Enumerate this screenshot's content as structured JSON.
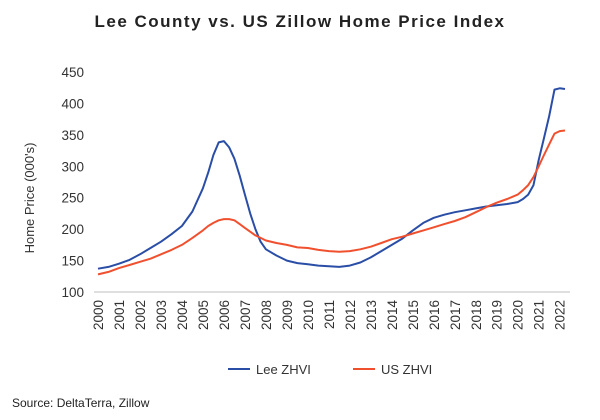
{
  "chart_data": {
    "type": "line",
    "title": "Lee County vs. US Zillow Home Price Index",
    "ylabel": "Home Price  (000's)",
    "xlabel": "",
    "x": [
      2000,
      2000.5,
      2001,
      2001.5,
      2002,
      2002.5,
      2003,
      2003.5,
      2004,
      2004.5,
      2005,
      2005.25,
      2005.5,
      2005.75,
      2006,
      2006.25,
      2006.5,
      2006.75,
      2007,
      2007.25,
      2007.5,
      2007.75,
      2008,
      2008.5,
      2009,
      2009.5,
      2010,
      2010.5,
      2011,
      2011.5,
      2012,
      2012.5,
      2013,
      2013.5,
      2014,
      2014.5,
      2015,
      2015.5,
      2016,
      2016.5,
      2017,
      2017.5,
      2018,
      2018.5,
      2019,
      2019.5,
      2020,
      2020.25,
      2020.5,
      2020.75,
      2021,
      2021.25,
      2021.5,
      2021.75,
      2022,
      2022.25
    ],
    "xlim": [
      2000,
      2022.3
    ],
    "xticks": [
      "2000",
      "2001",
      "2002",
      "2003",
      "2004",
      "2005",
      "2006",
      "2007",
      "2008",
      "2009",
      "2010",
      "2011",
      "2012",
      "2013",
      "2014",
      "2015",
      "2016",
      "2017",
      "2018",
      "2019",
      "2020",
      "2021",
      "2022"
    ],
    "yticks": [
      "100",
      "150",
      "200",
      "250",
      "300",
      "350",
      "400",
      "450"
    ],
    "ylim": [
      100,
      450
    ],
    "grid": false,
    "legend_position": "bottom",
    "series": [
      {
        "name": "Lee ZHVI",
        "color": "#2a4ea6",
        "values": [
          137,
          140,
          145,
          151,
          160,
          170,
          180,
          192,
          205,
          228,
          265,
          290,
          318,
          338,
          340,
          330,
          312,
          285,
          255,
          225,
          200,
          180,
          168,
          158,
          150,
          146,
          144,
          142,
          141,
          140,
          142,
          147,
          155,
          165,
          175,
          185,
          198,
          210,
          218,
          223,
          227,
          230,
          233,
          236,
          238,
          240,
          243,
          248,
          255,
          270,
          310,
          345,
          380,
          422,
          424,
          423
        ]
      },
      {
        "name": "US ZHVI",
        "color": "#f0502e",
        "values": [
          128,
          132,
          138,
          143,
          148,
          153,
          160,
          167,
          175,
          186,
          198,
          205,
          210,
          214,
          216,
          216,
          214,
          208,
          202,
          196,
          190,
          186,
          182,
          178,
          175,
          171,
          170,
          167,
          165,
          164,
          165,
          168,
          172,
          178,
          184,
          188,
          193,
          198,
          203,
          208,
          213,
          219,
          227,
          235,
          242,
          248,
          255,
          262,
          270,
          283,
          300,
          318,
          335,
          352,
          356,
          357
        ]
      }
    ]
  },
  "source_note": "Source: DeltaTerra, Zillow"
}
